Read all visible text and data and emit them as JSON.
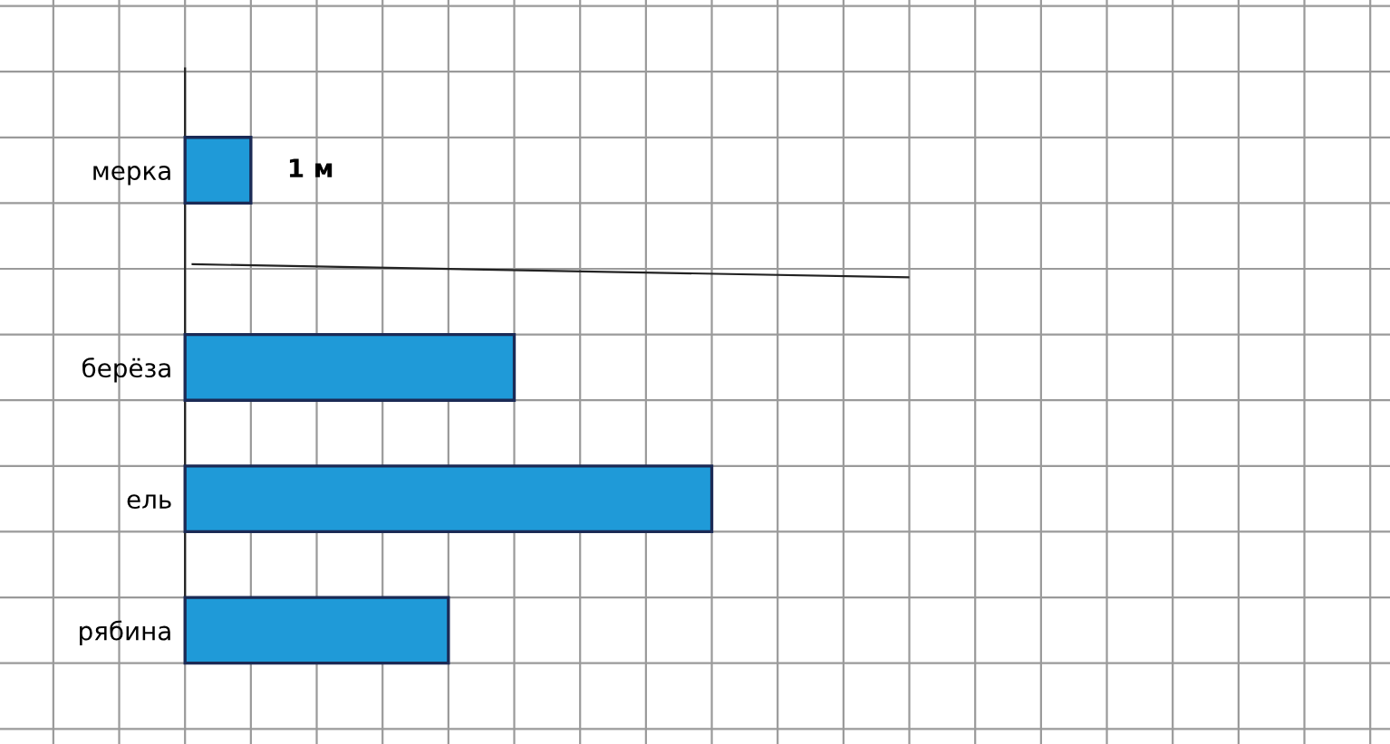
{
  "chart_data": {
    "type": "bar",
    "orientation": "horizontal",
    "categories": [
      "мерка",
      "берёза",
      "ель",
      "рябина"
    ],
    "values": [
      1,
      5,
      8,
      4
    ],
    "value_labels": [
      "1 м",
      null,
      null,
      null
    ],
    "color": "#1f9ad8",
    "xlim": [
      -2.81,
      18.3
    ],
    "xticks": [
      {
        "value": -2,
        "label": null
      },
      {
        "value": -1,
        "label": null
      },
      {
        "value": 0,
        "label": null
      },
      {
        "value": 1,
        "label": null
      },
      {
        "value": 2,
        "label": null
      },
      {
        "value": 3,
        "label": null
      },
      {
        "value": 4,
        "label": null
      },
      {
        "value": 5,
        "label": null
      },
      {
        "value": 6,
        "label": null
      },
      {
        "value": 7,
        "label": null
      },
      {
        "value": 8,
        "label": null
      },
      {
        "value": 9,
        "label": null
      },
      {
        "value": 10,
        "label": null
      },
      {
        "value": 11,
        "label": null
      },
      {
        "value": 12,
        "label": null
      },
      {
        "value": 13,
        "label": null
      },
      {
        "value": 14,
        "label": null
      },
      {
        "value": 15,
        "label": null
      },
      {
        "value": 16,
        "label": null
      },
      {
        "value": 17,
        "label": null
      },
      {
        "value": 18,
        "label": null
      }
    ],
    "tick_labels": "y",
    "grid": true
  }
}
